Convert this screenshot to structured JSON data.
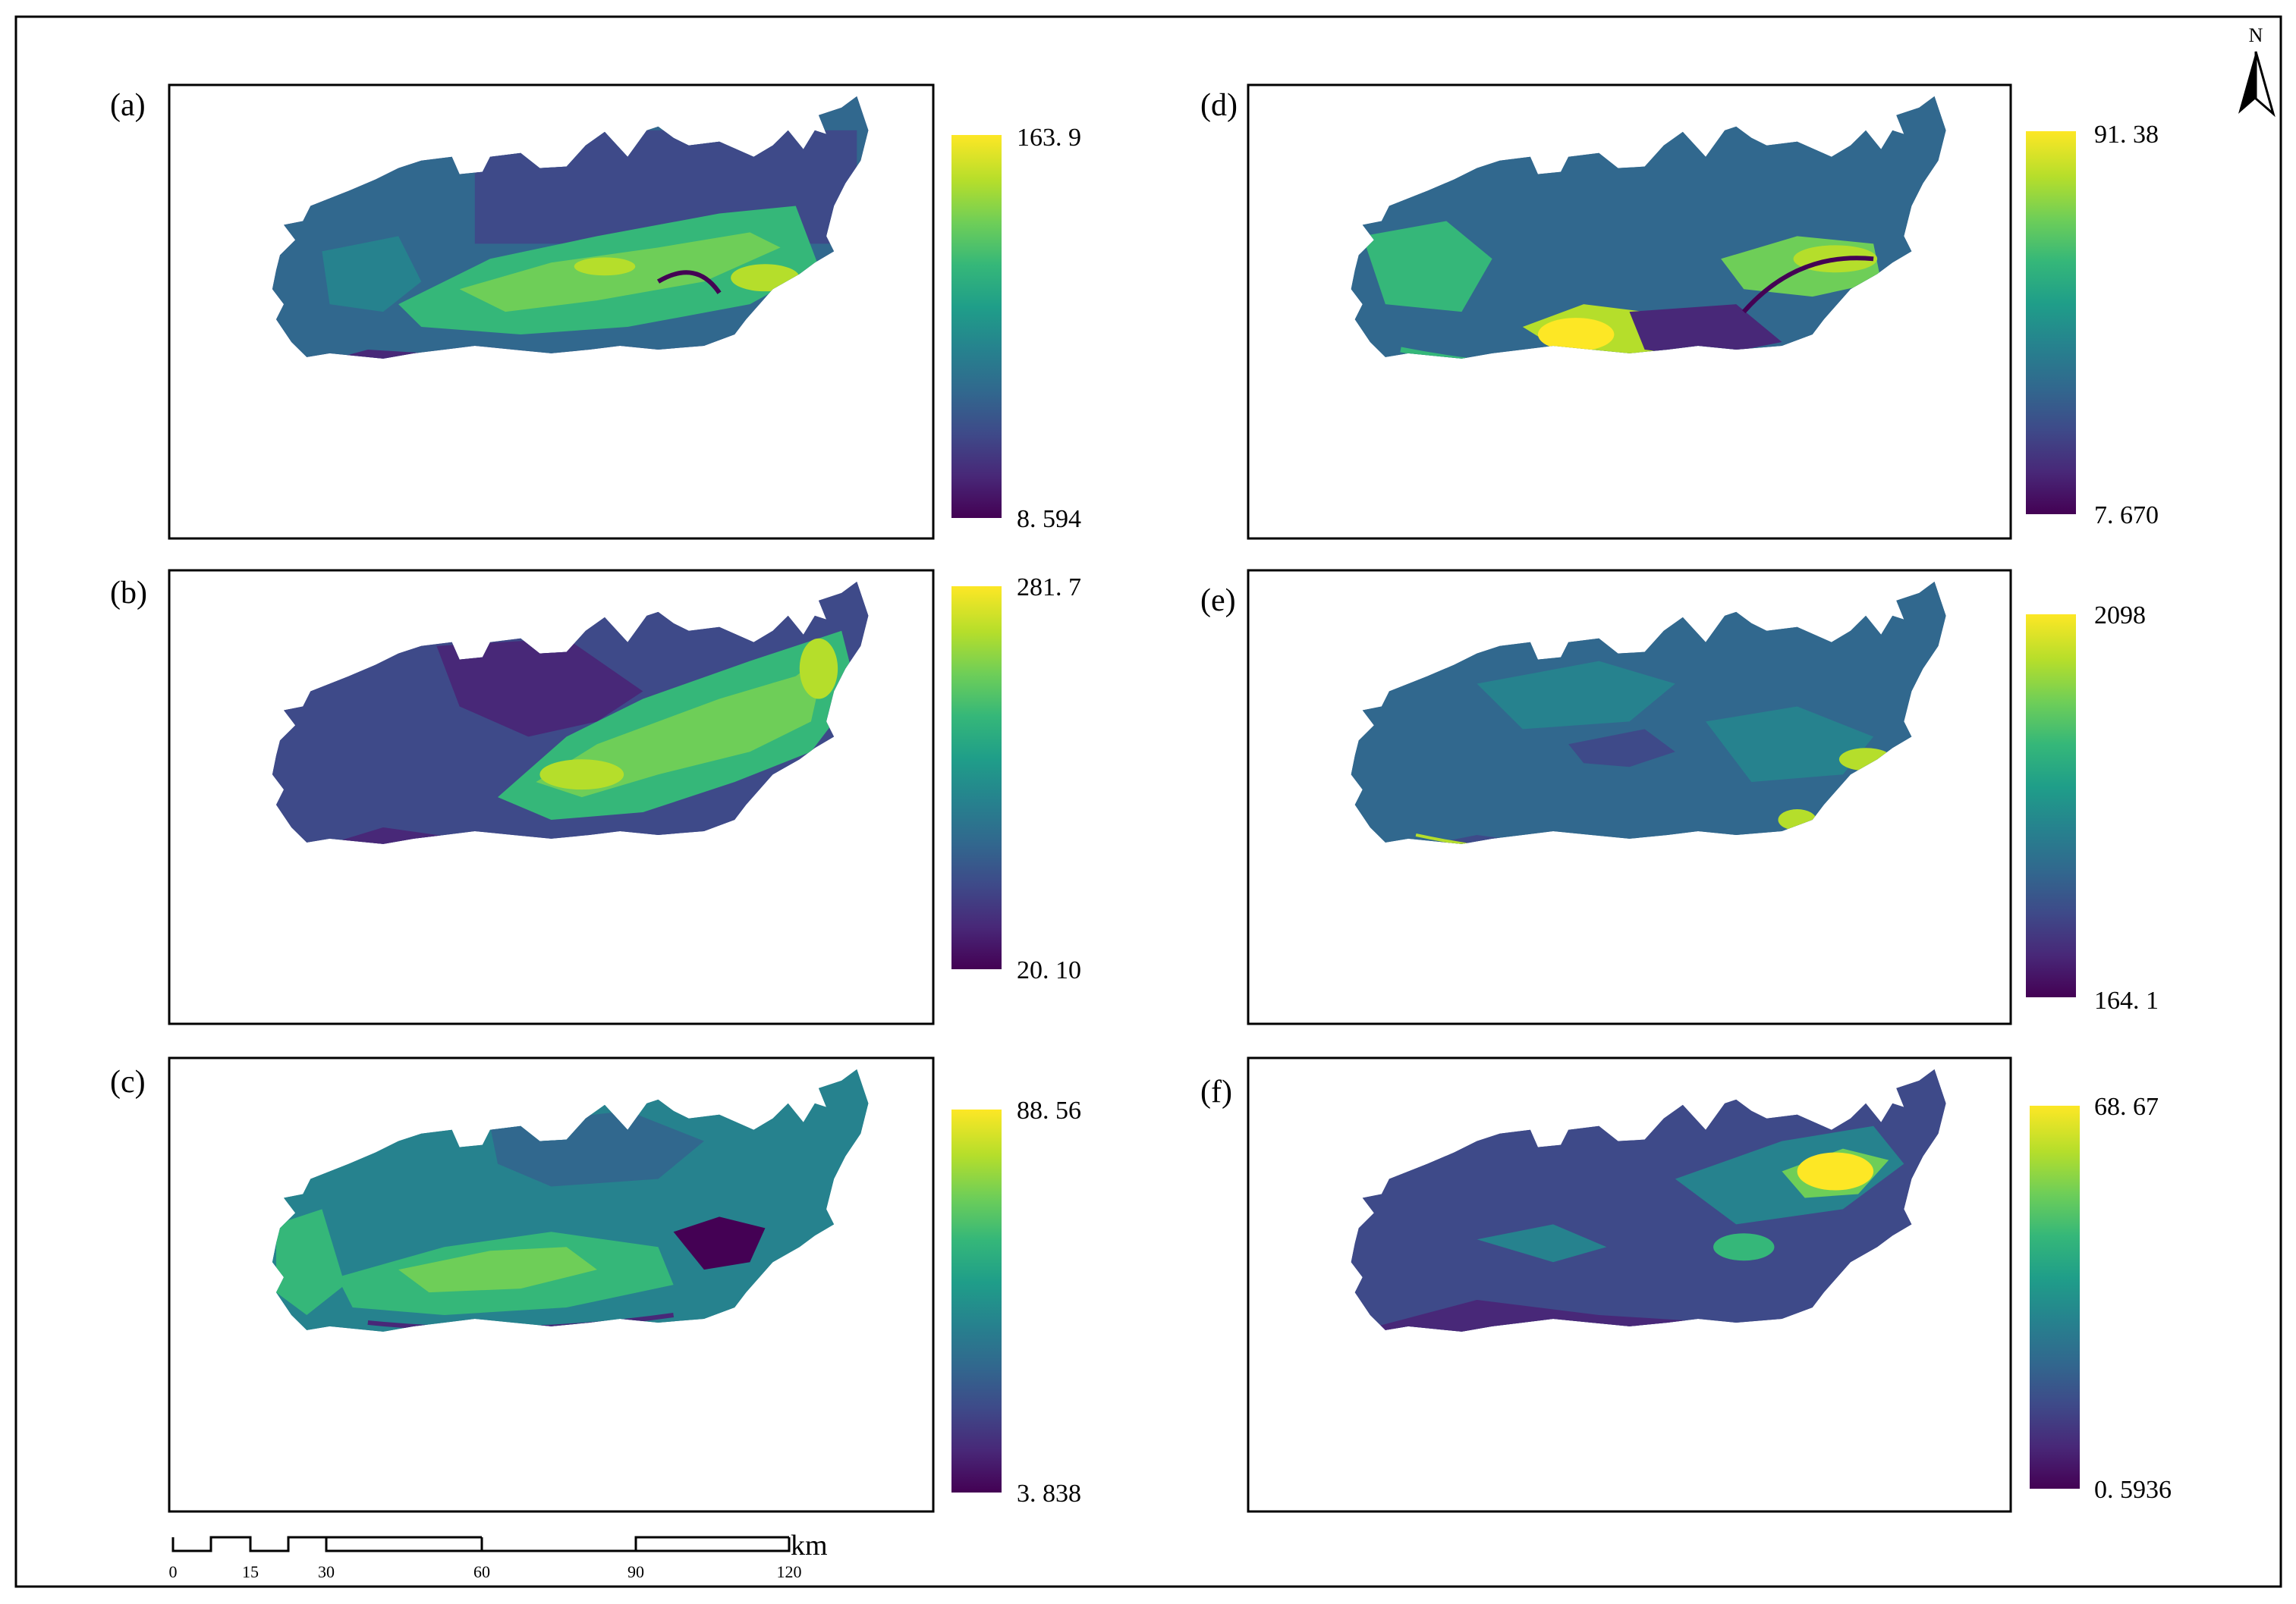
{
  "north_arrow": {
    "label": "N",
    "icon": "north-arrow-icon"
  },
  "colormap": {
    "name": "viridis",
    "stops": [
      "#440154",
      "#482878",
      "#3e4a89",
      "#31688e",
      "#26828e",
      "#1f9e89",
      "#35b779",
      "#6ece58",
      "#b5de2b",
      "#fde725"
    ]
  },
  "panels": [
    {
      "id": "a",
      "label": "(a)",
      "legend_max": "163. 9",
      "legend_min": "8. 594"
    },
    {
      "id": "b",
      "label": "(b)",
      "legend_max": "281. 7",
      "legend_min": "20. 10"
    },
    {
      "id": "c",
      "label": "(c)",
      "legend_max": "88. 56",
      "legend_min": "3. 838"
    },
    {
      "id": "d",
      "label": "(d)",
      "legend_max": "91. 38",
      "legend_min": "7. 670"
    },
    {
      "id": "e",
      "label": "(e)",
      "legend_max": "2098",
      "legend_min": "164. 1"
    },
    {
      "id": "f",
      "label": "(f)",
      "legend_max": "68. 67",
      "legend_min": "0. 5936"
    }
  ],
  "scale_bar": {
    "unit": "km",
    "ticks": [
      "0",
      "15",
      "30",
      "60",
      "90",
      "120"
    ]
  }
}
